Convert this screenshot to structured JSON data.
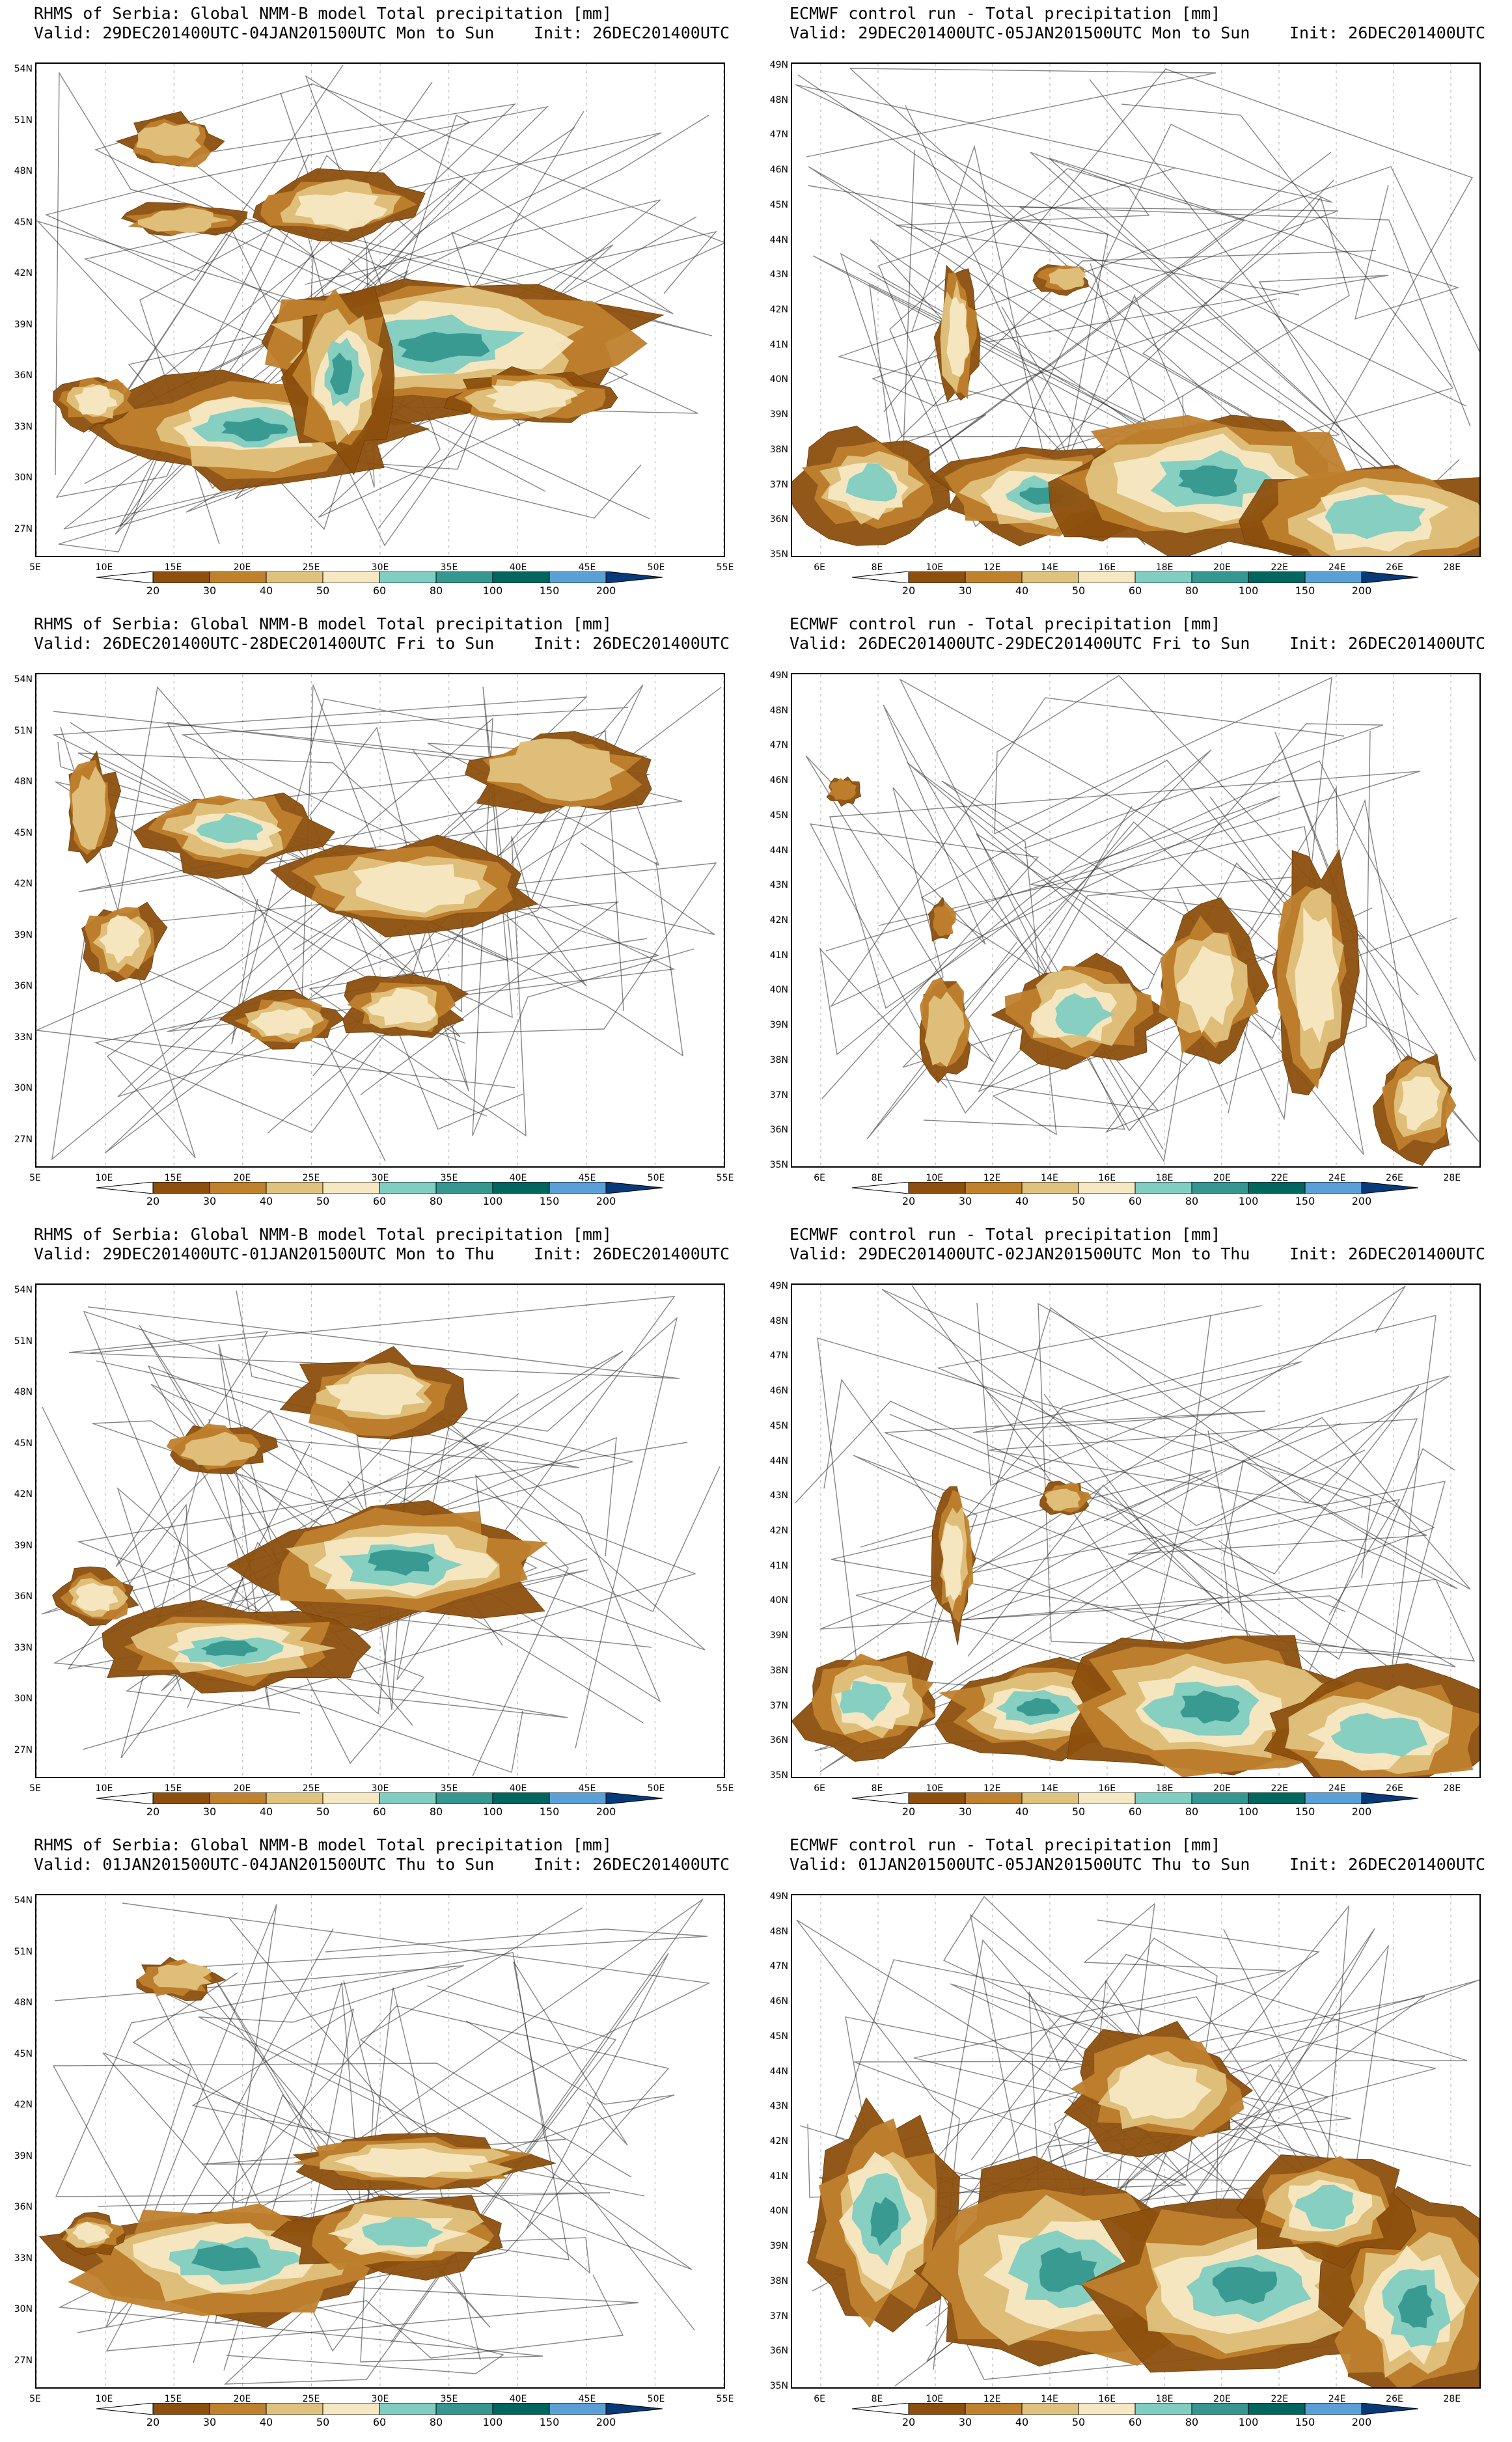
{
  "colorbar": {
    "labels": [
      "20",
      "30",
      "40",
      "50",
      "60",
      "80",
      "100",
      "150",
      "200"
    ],
    "colors": [
      "#8c4f0d",
      "#bf812d",
      "#dfc27d",
      "#f6e8c3",
      "#80cdc1",
      "#35978f",
      "#01665e",
      "#5aa0d6",
      "#2166ac",
      "#083a7a"
    ]
  },
  "axes": {
    "left": {
      "lat": [
        "54N",
        "51N",
        "48N",
        "45N",
        "42N",
        "39N",
        "36N",
        "33N",
        "30N",
        "27N"
      ],
      "lon": [
        "5E",
        "10E",
        "15E",
        "20E",
        "25E",
        "30E",
        "35E",
        "40E",
        "45E",
        "50E",
        "55E"
      ]
    },
    "right": {
      "lat": [
        "49N",
        "48N",
        "47N",
        "46N",
        "45N",
        "44N",
        "43N",
        "42N",
        "41N",
        "40N",
        "39N",
        "38N",
        "37N",
        "36N",
        "35N"
      ],
      "lon": [
        "6E",
        "8E",
        "10E",
        "12E",
        "14E",
        "16E",
        "18E",
        "20E",
        "22E",
        "24E",
        "26E",
        "28E"
      ]
    }
  },
  "panels": [
    {
      "title": "RHMS of Serbia: Global NMM-B model Total precipitation [mm]",
      "valid": "Valid: 29DEC201400UTC-04JAN201500UTC Mon to Sun",
      "init": "Init: 26DEC201400UTC"
    },
    {
      "title": "ECMWF control run - Total precipitation [mm]",
      "valid": "Valid: 29DEC201400UTC-05JAN201500UTC Mon to Sun",
      "init": "Init: 26DEC201400UTC"
    },
    {
      "title": "RHMS of Serbia: Global NMM-B model Total precipitation [mm]",
      "valid": "Valid: 26DEC201400UTC-28DEC201400UTC Fri to Sun",
      "init": "Init: 26DEC201400UTC"
    },
    {
      "title": "ECMWF control run - Total precipitation [mm]",
      "valid": "Valid: 26DEC201400UTC-29DEC201400UTC Fri to Sun",
      "init": "Init: 26DEC201400UTC"
    },
    {
      "title": "RHMS of Serbia: Global NMM-B model Total precipitation [mm]",
      "valid": "Valid: 29DEC201400UTC-01JAN201500UTC Mon to Thu",
      "init": "Init: 26DEC201400UTC"
    },
    {
      "title": "ECMWF control run - Total precipitation [mm]",
      "valid": "Valid: 29DEC201400UTC-02JAN201500UTC Mon to Thu",
      "init": "Init: 26DEC201400UTC"
    },
    {
      "title": "RHMS of Serbia: Global NMM-B model Total precipitation [mm]",
      "valid": "Valid: 01JAN201500UTC-04JAN201500UTC Thu to Sun",
      "init": "Init: 26DEC201400UTC"
    },
    {
      "title": "ECMWF control run - Total precipitation [mm]",
      "valid": "Valid: 01JAN201500UTC-05JAN201500UTC Thu to Sun",
      "init": "Init: 26DEC201400UTC"
    }
  ]
}
